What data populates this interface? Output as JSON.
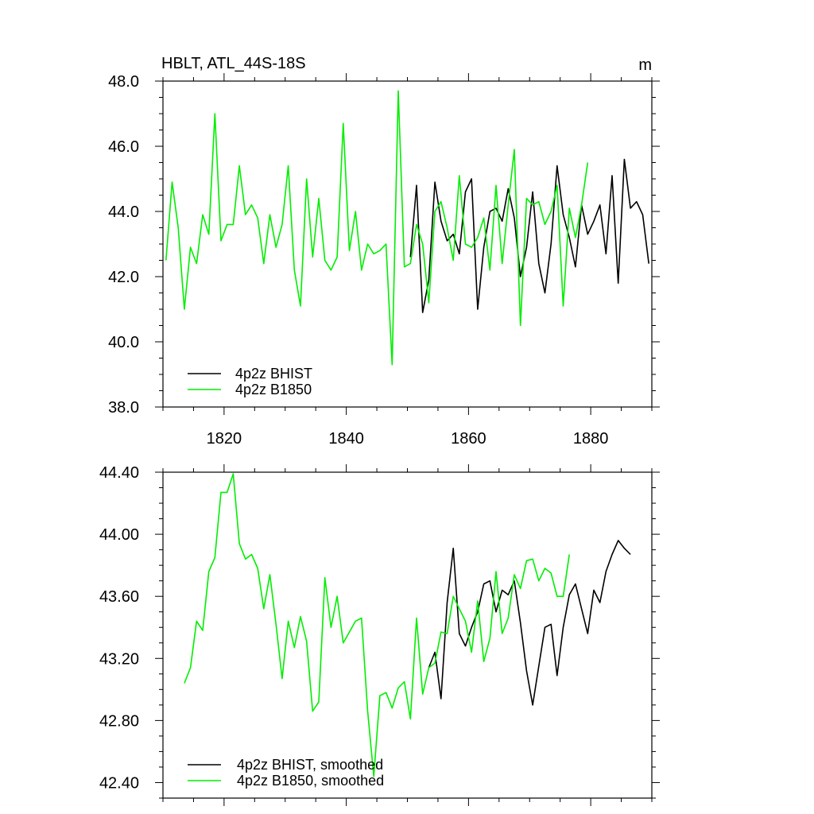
{
  "chart_data": [
    {
      "type": "line",
      "title": "HBLT, ATL_44S-18S",
      "units": "m",
      "xlabel": "",
      "ylabel": "",
      "xlim": [
        1810,
        1890
      ],
      "ylim": [
        38.0,
        48.0
      ],
      "xticks": [
        1820,
        1840,
        1860,
        1880
      ],
      "xtick_labels": [
        "1820",
        "1840",
        "1860",
        "1880"
      ],
      "yticks": [
        38.0,
        40.0,
        42.0,
        44.0,
        46.0,
        48.0
      ],
      "ytick_labels": [
        "38.0",
        "40.0",
        "42.0",
        "44.0",
        "46.0",
        "48.0"
      ],
      "legend_position": "bottom-left",
      "series": [
        {
          "name": "4p2z BHIST",
          "color": "#000000",
          "x": [
            1850.5,
            1851.5,
            1852.5,
            1853.5,
            1854.5,
            1855.5,
            1856.5,
            1857.5,
            1858.5,
            1859.5,
            1860.5,
            1861.5,
            1862.5,
            1863.5,
            1864.5,
            1865.5,
            1866.5,
            1867.5,
            1868.5,
            1869.5,
            1870.5,
            1871.5,
            1872.5,
            1873.5,
            1874.5,
            1875.5,
            1876.5,
            1877.5,
            1878.5,
            1879.5,
            1880.5,
            1881.5,
            1882.5,
            1883.5,
            1884.5,
            1885.5,
            1886.5,
            1887.5,
            1888.5,
            1889.5
          ],
          "values": [
            42.6,
            44.8,
            40.9,
            41.9,
            44.9,
            43.7,
            43.1,
            43.3,
            42.7,
            44.6,
            45.0,
            41.0,
            42.9,
            44.0,
            44.1,
            43.7,
            44.7,
            43.8,
            42.0,
            42.9,
            44.6,
            42.4,
            41.5,
            43.0,
            45.4,
            43.9,
            43.2,
            42.3,
            44.2,
            43.3,
            43.7,
            44.2,
            42.7,
            45.1,
            41.8,
            45.6,
            44.1,
            44.3,
            43.9,
            42.4
          ]
        },
        {
          "name": "4p2z B1850",
          "color": "#00ee00",
          "x": [
            1810.5,
            1811.5,
            1812.5,
            1813.5,
            1814.5,
            1815.5,
            1816.5,
            1817.5,
            1818.5,
            1819.5,
            1820.5,
            1821.5,
            1822.5,
            1823.5,
            1824.5,
            1825.5,
            1826.5,
            1827.5,
            1828.5,
            1829.5,
            1830.5,
            1831.5,
            1832.5,
            1833.5,
            1834.5,
            1835.5,
            1836.5,
            1837.5,
            1838.5,
            1839.5,
            1840.5,
            1841.5,
            1842.5,
            1843.5,
            1844.5,
            1845.5,
            1846.5,
            1847.5,
            1848.5,
            1849.5,
            1850.5,
            1851.5,
            1852.5,
            1853.5,
            1854.5,
            1855.5,
            1856.5,
            1857.5,
            1858.5,
            1859.5,
            1860.5,
            1861.5,
            1862.5,
            1863.5,
            1864.5,
            1865.5,
            1866.5,
            1867.5,
            1868.5,
            1869.5,
            1870.5,
            1871.5,
            1872.5,
            1873.5,
            1874.5,
            1875.5,
            1876.5,
            1877.5,
            1878.5,
            1879.5
          ],
          "values": [
            42.5,
            44.9,
            43.5,
            41.0,
            42.9,
            42.4,
            43.9,
            43.3,
            47.0,
            43.1,
            43.6,
            43.6,
            45.4,
            43.9,
            44.2,
            43.8,
            42.4,
            43.9,
            42.9,
            43.6,
            45.4,
            42.2,
            41.1,
            45.0,
            42.6,
            44.4,
            42.5,
            42.2,
            42.6,
            46.7,
            42.8,
            44.0,
            42.2,
            43.0,
            42.7,
            42.8,
            43.0,
            39.3,
            47.7,
            42.3,
            42.4,
            43.6,
            43.0,
            41.2,
            44.0,
            44.3,
            43.5,
            42.5,
            45.1,
            43.0,
            42.9,
            43.2,
            43.8,
            42.2,
            44.8,
            42.4,
            44.2,
            45.9,
            40.5,
            44.4,
            44.2,
            44.3,
            43.6,
            44.0,
            44.8,
            41.1,
            44.1,
            43.2,
            44.2,
            45.5
          ]
        }
      ]
    },
    {
      "type": "line",
      "title": "",
      "xlabel": "",
      "ylabel": "",
      "xlim": [
        1810,
        1890
      ],
      "ylim": [
        42.3,
        44.4
      ],
      "xticks": [
        1820,
        1840,
        1860,
        1880
      ],
      "xtick_labels": [
        "",
        "",
        "",
        ""
      ],
      "yticks": [
        42.4,
        42.8,
        43.2,
        43.6,
        44.0,
        44.4
      ],
      "ytick_labels": [
        "42.40",
        "42.80",
        "43.20",
        "43.60",
        "44.00",
        "44.40"
      ],
      "legend_position": "bottom-left",
      "series": [
        {
          "name": "4p2z BHIST, smoothed",
          "color": "#000000",
          "x": [
            1853.5,
            1854.5,
            1855.5,
            1856.5,
            1857.5,
            1858.5,
            1859.5,
            1860.5,
            1861.5,
            1862.5,
            1863.5,
            1864.5,
            1865.5,
            1866.5,
            1867.5,
            1868.5,
            1869.5,
            1870.5,
            1871.5,
            1872.5,
            1873.5,
            1874.5,
            1875.5,
            1876.5,
            1877.5,
            1878.5,
            1879.5,
            1880.5,
            1881.5,
            1882.5,
            1883.5,
            1884.5,
            1885.5,
            1886.5
          ],
          "values": [
            43.14,
            43.24,
            42.94,
            43.56,
            43.91,
            43.36,
            43.28,
            43.4,
            43.5,
            43.68,
            43.7,
            43.5,
            43.64,
            43.61,
            43.7,
            43.43,
            43.12,
            42.9,
            43.15,
            43.4,
            43.42,
            43.09,
            43.4,
            43.61,
            43.68,
            43.52,
            43.36,
            43.64,
            43.56,
            43.76,
            43.87,
            43.96,
            43.91,
            43.87
          ]
        },
        {
          "name": "4p2z B1850, smoothed",
          "color": "#00ee00",
          "x": [
            1813.5,
            1814.5,
            1815.5,
            1816.5,
            1817.5,
            1818.5,
            1819.5,
            1820.5,
            1821.5,
            1822.5,
            1823.5,
            1824.5,
            1825.5,
            1826.5,
            1827.5,
            1828.5,
            1829.5,
            1830.5,
            1831.5,
            1832.5,
            1833.5,
            1834.5,
            1835.5,
            1836.5,
            1837.5,
            1838.5,
            1839.5,
            1840.5,
            1841.5,
            1842.5,
            1843.5,
            1844.5,
            1845.5,
            1846.5,
            1847.5,
            1848.5,
            1849.5,
            1850.5,
            1851.5,
            1852.5,
            1853.5,
            1854.5,
            1855.5,
            1856.5,
            1857.5,
            1858.5,
            1859.5,
            1860.5,
            1861.5,
            1862.5,
            1863.5,
            1864.5,
            1865.5,
            1866.5,
            1867.5,
            1868.5,
            1869.5,
            1870.5,
            1871.5,
            1872.5,
            1873.5,
            1874.5,
            1875.5,
            1876.5
          ],
          "values": [
            43.04,
            43.14,
            43.44,
            43.38,
            43.76,
            43.85,
            44.27,
            44.27,
            44.39,
            43.94,
            43.84,
            43.87,
            43.78,
            43.52,
            43.74,
            43.42,
            43.07,
            43.44,
            43.27,
            43.47,
            43.31,
            42.86,
            42.92,
            43.72,
            43.4,
            43.6,
            43.3,
            43.37,
            43.44,
            43.46,
            42.86,
            42.44,
            42.96,
            42.98,
            42.88,
            43.01,
            43.05,
            42.81,
            43.46,
            42.97,
            43.14,
            43.17,
            43.37,
            43.36,
            43.6,
            43.52,
            43.44,
            43.24,
            43.57,
            43.18,
            43.33,
            43.76,
            43.36,
            43.46,
            43.74,
            43.65,
            43.83,
            43.84,
            43.7,
            43.78,
            43.75,
            43.6,
            43.6,
            43.87
          ]
        }
      ]
    }
  ]
}
